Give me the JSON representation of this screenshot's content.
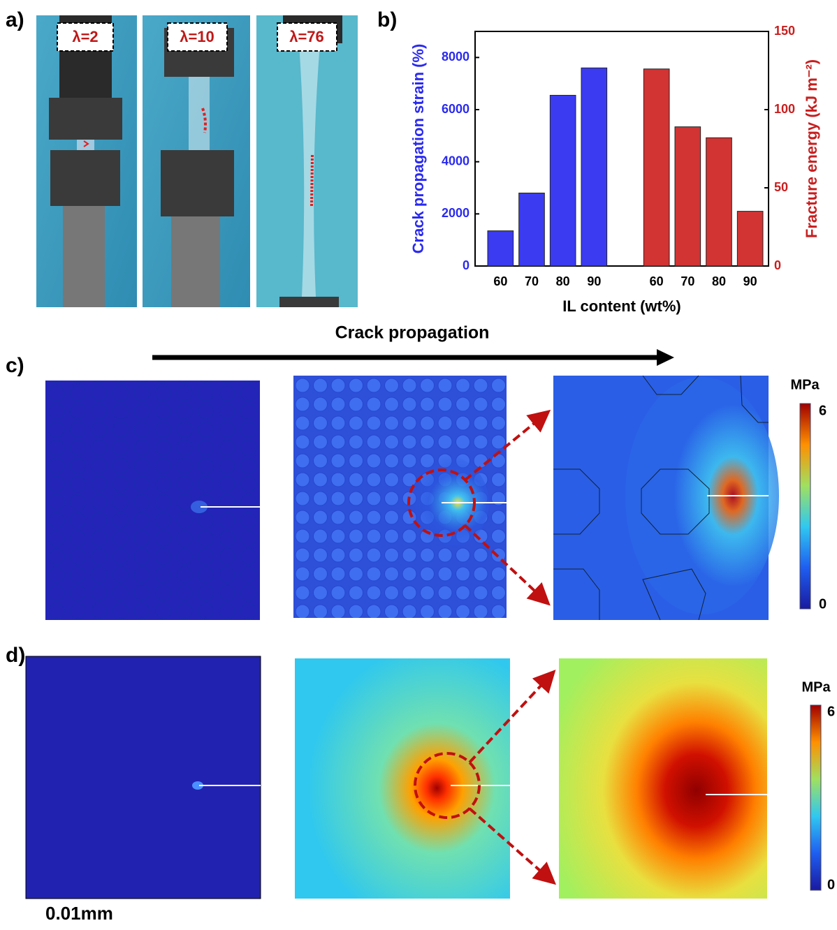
{
  "panel_labels": [
    "a)",
    "b)",
    "c)",
    "d)"
  ],
  "photos": [
    {
      "label": "λ=2"
    },
    {
      "label": "λ=10"
    },
    {
      "label": "λ=76"
    }
  ],
  "chart_data": {
    "type": "bar",
    "xlabel": "IL content (wt%)",
    "ylabel": "Crack propagation strain (%)",
    "y2label": "Fracture energy (kJ m⁻²)",
    "categories": [
      "60",
      "70",
      "80",
      "90",
      null,
      "60",
      "70",
      "80",
      "90"
    ],
    "series": [
      {
        "color": "#3b3bf2",
        "values": [
          1350,
          2800,
          6550,
          7600,
          null,
          null,
          null,
          null,
          null
        ]
      },
      {
        "color": "#d23434",
        "axis": "y2",
        "values": [
          null,
          null,
          null,
          null,
          null,
          126,
          89,
          82,
          35
        ]
      }
    ],
    "ylim": [
      0,
      9000
    ],
    "yticks": [
      0,
      2000,
      4000,
      6000,
      8000
    ],
    "y2lim": [
      0,
      150
    ],
    "y2ticks": [
      0,
      50,
      100,
      150
    ]
  },
  "simulation": {
    "title": "Crack propagation",
    "rows": [
      {
        "unit": "MPa",
        "max": 6,
        "min": 0
      },
      {
        "unit": "MPa",
        "max": 6,
        "min": 0
      }
    ],
    "scale_bar": "0.01mm"
  }
}
